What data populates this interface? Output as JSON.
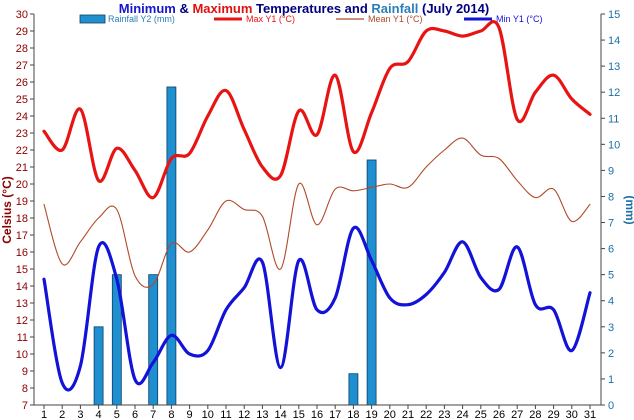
{
  "chart_data": {
    "type": "bar+line",
    "title_parts": [
      {
        "text": "Minimum",
        "color": "#1515d0"
      },
      {
        "text": " & ",
        "color": "#000080"
      },
      {
        "text": "Maximum",
        "color": "#e01010"
      },
      {
        "text": " Temperatures and ",
        "color": "#000080"
      },
      {
        "text": "Rainfall",
        "color": "#2a7fb8"
      },
      {
        "text": " (July 2014)",
        "color": "#000080"
      }
    ],
    "ylabel_left": "Celsius (°C)",
    "ylabel_right": "(mm)",
    "x": [
      1,
      2,
      3,
      4,
      5,
      6,
      7,
      8,
      9,
      10,
      11,
      12,
      13,
      14,
      15,
      16,
      17,
      18,
      19,
      20,
      21,
      22,
      23,
      24,
      25,
      26,
      27,
      28,
      29,
      30,
      31
    ],
    "xlim": [
      1,
      31
    ],
    "ylim_left": [
      7,
      30
    ],
    "yticks_left": [
      7,
      8,
      9,
      10,
      11,
      12,
      13,
      14,
      15,
      16,
      17,
      18,
      19,
      20,
      21,
      22,
      23,
      24,
      25,
      26,
      27,
      28,
      29,
      30
    ],
    "ylim_right": [
      0,
      15
    ],
    "yticks_right": [
      0,
      1,
      2,
      3,
      4,
      5,
      6,
      7,
      8,
      9,
      10,
      11,
      12,
      13,
      14,
      15
    ],
    "grid": false,
    "legend_position": "top",
    "series": [
      {
        "name": "Rainfall Y2 (mm)",
        "kind": "bar",
        "axis": "right",
        "color": "#1f8fd0",
        "edge": "#0b3f66",
        "values": [
          0,
          0,
          0,
          3.0,
          5.0,
          0,
          5.0,
          12.2,
          0,
          0,
          0,
          0,
          0,
          0,
          0,
          0,
          0,
          1.2,
          9.4,
          0,
          0,
          0,
          0,
          0,
          0,
          0,
          0,
          0,
          0,
          0,
          0
        ]
      },
      {
        "name": "Max Y1 (°C)",
        "kind": "line",
        "axis": "left",
        "color": "#e81414",
        "width": 3.2,
        "values": [
          23.1,
          22.0,
          24.4,
          20.2,
          22.1,
          20.8,
          19.2,
          21.5,
          21.8,
          24.0,
          25.5,
          23.2,
          21.0,
          20.5,
          24.3,
          22.9,
          26.4,
          21.9,
          24.2,
          26.8,
          27.2,
          29.0,
          29.0,
          28.7,
          29.0,
          29.2,
          23.8,
          25.4,
          26.4,
          25.0,
          24.1
        ]
      },
      {
        "name": "Mean Y1 (°C)",
        "kind": "line",
        "axis": "left",
        "color": "#b04a28",
        "width": 1.1,
        "values": [
          18.8,
          15.3,
          16.6,
          18.0,
          18.5,
          14.6,
          14.1,
          16.5,
          16.0,
          17.3,
          19.0,
          18.5,
          18.1,
          15.0,
          20.0,
          17.6,
          19.7,
          19.6,
          19.8,
          20.0,
          19.8,
          21.0,
          22.0,
          22.7,
          21.7,
          21.5,
          20.2,
          19.2,
          19.7,
          17.8,
          18.8
        ]
      },
      {
        "name": "Min Y1 (°C)",
        "kind": "line",
        "axis": "left",
        "color": "#1212d8",
        "width": 3.2,
        "values": [
          14.4,
          8.3,
          9.3,
          16.3,
          14.4,
          8.5,
          9.5,
          11.1,
          10.0,
          10.2,
          12.6,
          13.9,
          15.4,
          9.2,
          15.5,
          12.6,
          13.3,
          17.4,
          15.5,
          13.3,
          12.9,
          13.5,
          14.8,
          16.6,
          14.5,
          13.8,
          16.3,
          12.9,
          12.6,
          10.2,
          13.6
        ]
      }
    ]
  }
}
